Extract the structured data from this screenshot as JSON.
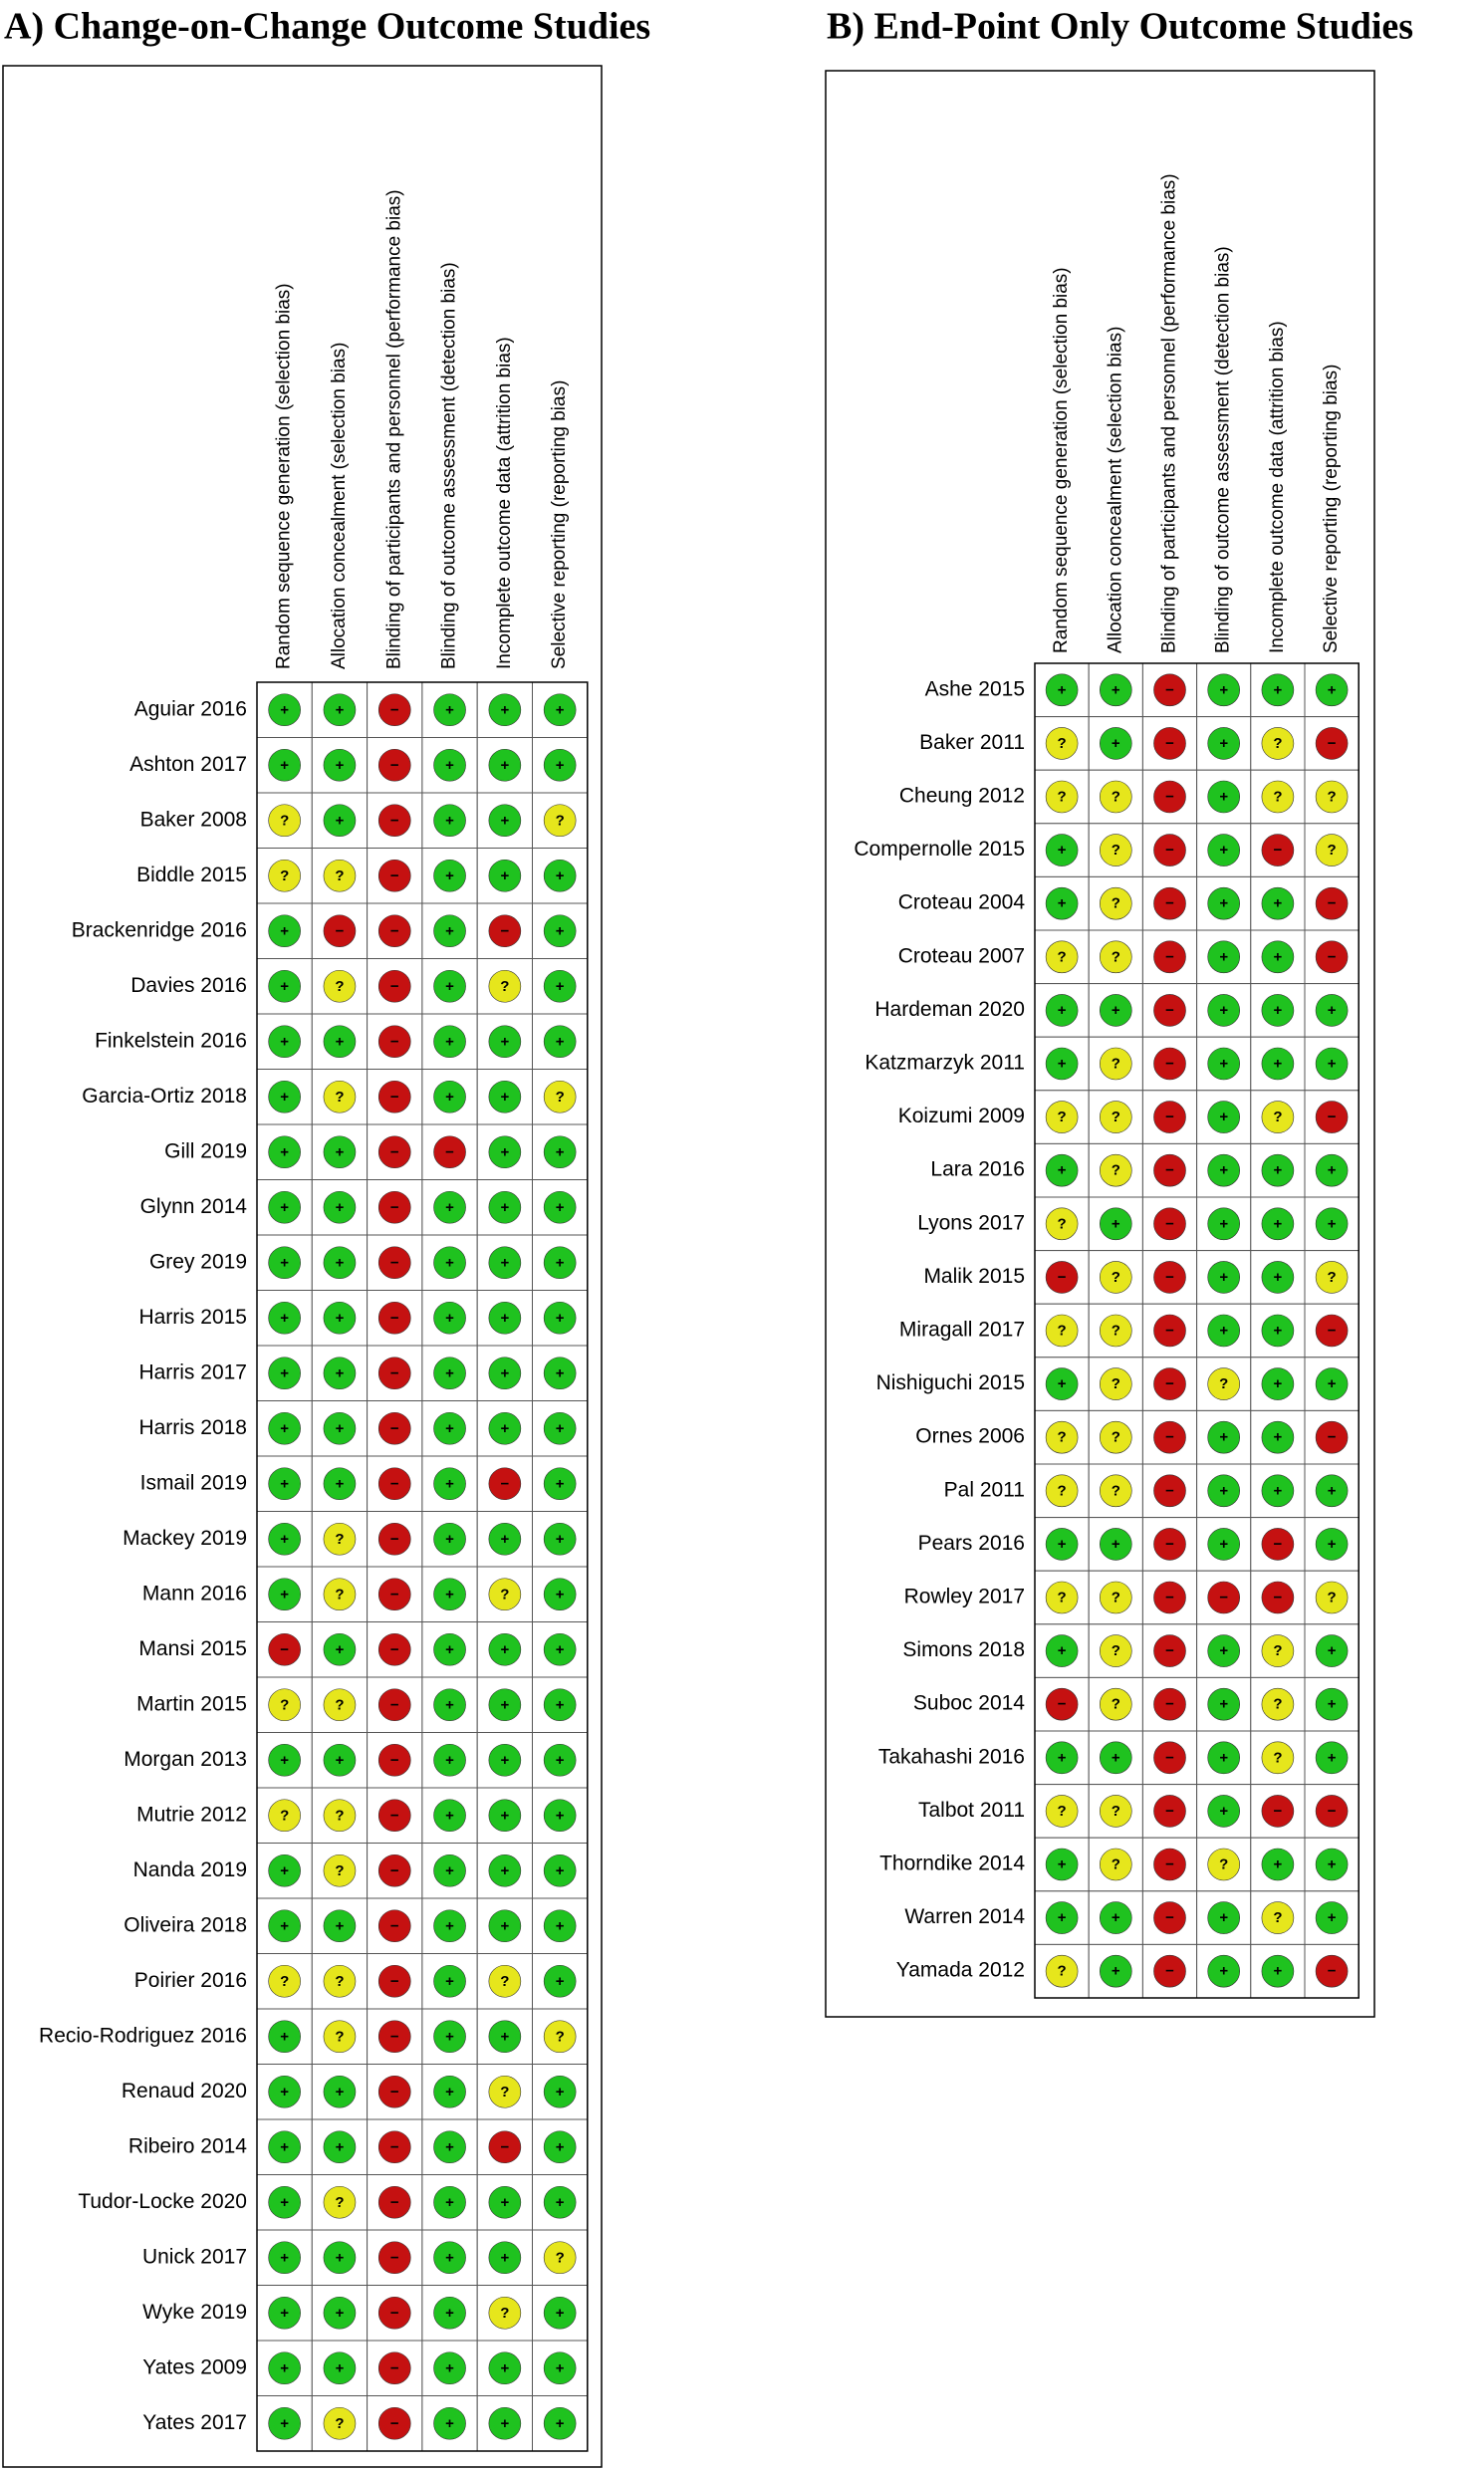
{
  "symbol_colors": [
    {
      "symbol": "+",
      "color": "#1fc21f"
    },
    {
      "symbol": "?",
      "color": "#e6e61c"
    },
    {
      "symbol": "−",
      "color": "#c51111"
    }
  ],
  "panels": [
    {
      "title": "A) Change-on-Change Outcome Studies",
      "columns": [
        "Random sequence generation (selection bias)",
        "Allocation concealment (selection bias)",
        "Blinding of participants and personnel (performance bias)",
        "Blinding of outcome assessment (detection bias)",
        "Incomplete outcome data (attrition bias)",
        "Selective reporting (reporting bias)"
      ],
      "rows": [
        {
          "study": "Aguiar 2016",
          "judgments": [
            "+",
            "+",
            "−",
            "+",
            "+",
            "+"
          ]
        },
        {
          "study": "Ashton 2017",
          "judgments": [
            "+",
            "+",
            "−",
            "+",
            "+",
            "+"
          ]
        },
        {
          "study": "Baker 2008",
          "judgments": [
            "?",
            "+",
            "−",
            "+",
            "+",
            "?"
          ]
        },
        {
          "study": "Biddle 2015",
          "judgments": [
            "?",
            "?",
            "−",
            "+",
            "+",
            "+"
          ]
        },
        {
          "study": "Brackenridge 2016",
          "judgments": [
            "+",
            "−",
            "−",
            "+",
            "−",
            "+"
          ]
        },
        {
          "study": "Davies 2016",
          "judgments": [
            "+",
            "?",
            "−",
            "+",
            "?",
            "+"
          ]
        },
        {
          "study": "Finkelstein 2016",
          "judgments": [
            "+",
            "+",
            "−",
            "+",
            "+",
            "+"
          ]
        },
        {
          "study": "Garcia-Ortiz 2018",
          "judgments": [
            "+",
            "?",
            "−",
            "+",
            "+",
            "?"
          ]
        },
        {
          "study": "Gill 2019",
          "judgments": [
            "+",
            "+",
            "−",
            "−",
            "+",
            "+"
          ]
        },
        {
          "study": "Glynn 2014",
          "judgments": [
            "+",
            "+",
            "−",
            "+",
            "+",
            "+"
          ]
        },
        {
          "study": "Grey 2019",
          "judgments": [
            "+",
            "+",
            "−",
            "+",
            "+",
            "+"
          ]
        },
        {
          "study": "Harris 2015",
          "judgments": [
            "+",
            "+",
            "−",
            "+",
            "+",
            "+"
          ]
        },
        {
          "study": "Harris 2017",
          "judgments": [
            "+",
            "+",
            "−",
            "+",
            "+",
            "+"
          ]
        },
        {
          "study": "Harris 2018",
          "judgments": [
            "+",
            "+",
            "−",
            "+",
            "+",
            "+"
          ]
        },
        {
          "study": "Ismail 2019",
          "judgments": [
            "+",
            "+",
            "−",
            "+",
            "−",
            "+"
          ]
        },
        {
          "study": "Mackey 2019",
          "judgments": [
            "+",
            "?",
            "−",
            "+",
            "+",
            "+"
          ]
        },
        {
          "study": "Mann 2016",
          "judgments": [
            "+",
            "?",
            "−",
            "+",
            "?",
            "+"
          ]
        },
        {
          "study": "Mansi 2015",
          "judgments": [
            "−",
            "+",
            "−",
            "+",
            "+",
            "+"
          ]
        },
        {
          "study": "Martin 2015",
          "judgments": [
            "?",
            "?",
            "−",
            "+",
            "+",
            "+"
          ]
        },
        {
          "study": "Morgan 2013",
          "judgments": [
            "+",
            "+",
            "−",
            "+",
            "+",
            "+"
          ]
        },
        {
          "study": "Mutrie 2012",
          "judgments": [
            "?",
            "?",
            "−",
            "+",
            "+",
            "+"
          ]
        },
        {
          "study": "Nanda 2019",
          "judgments": [
            "+",
            "?",
            "−",
            "+",
            "+",
            "+"
          ]
        },
        {
          "study": "Oliveira 2018",
          "judgments": [
            "+",
            "+",
            "−",
            "+",
            "+",
            "+"
          ]
        },
        {
          "study": "Poirier 2016",
          "judgments": [
            "?",
            "?",
            "−",
            "+",
            "?",
            "+"
          ]
        },
        {
          "study": "Recio-Rodriguez 2016",
          "judgments": [
            "+",
            "?",
            "−",
            "+",
            "+",
            "?"
          ]
        },
        {
          "study": "Renaud 2020",
          "judgments": [
            "+",
            "+",
            "−",
            "+",
            "?",
            "+"
          ]
        },
        {
          "study": "Ribeiro 2014",
          "judgments": [
            "+",
            "+",
            "−",
            "+",
            "−",
            "+"
          ]
        },
        {
          "study": "Tudor-Locke 2020",
          "judgments": [
            "+",
            "?",
            "−",
            "+",
            "+",
            "+"
          ]
        },
        {
          "study": "Unick 2017",
          "judgments": [
            "+",
            "+",
            "−",
            "+",
            "+",
            "?"
          ]
        },
        {
          "study": "Wyke 2019",
          "judgments": [
            "+",
            "+",
            "−",
            "+",
            "?",
            "+"
          ]
        },
        {
          "study": "Yates 2009",
          "judgments": [
            "+",
            "+",
            "−",
            "+",
            "+",
            "+"
          ]
        },
        {
          "study": "Yates 2017",
          "judgments": [
            "+",
            "?",
            "−",
            "+",
            "+",
            "+"
          ]
        }
      ]
    },
    {
      "title": "B) End-Point Only Outcome Studies",
      "columns": [
        "Random sequence generation (selection bias)",
        "Allocation concealment (selection bias)",
        "Blinding of participants and personnel (performance bias)",
        "Blinding of outcome assessment (detection bias)",
        "Incomplete outcome data (attrition bias)",
        "Selective reporting (reporting bias)"
      ],
      "rows": [
        {
          "study": "Ashe 2015",
          "judgments": [
            "+",
            "+",
            "−",
            "+",
            "+",
            "+"
          ]
        },
        {
          "study": "Baker 2011",
          "judgments": [
            "?",
            "+",
            "−",
            "+",
            "?",
            "−"
          ]
        },
        {
          "study": "Cheung 2012",
          "judgments": [
            "?",
            "?",
            "−",
            "+",
            "?",
            "?"
          ]
        },
        {
          "study": "Compernolle 2015",
          "judgments": [
            "+",
            "?",
            "−",
            "+",
            "−",
            "?"
          ]
        },
        {
          "study": "Croteau 2004",
          "judgments": [
            "+",
            "?",
            "−",
            "+",
            "+",
            "−"
          ]
        },
        {
          "study": "Croteau 2007",
          "judgments": [
            "?",
            "?",
            "−",
            "+",
            "+",
            "−"
          ]
        },
        {
          "study": "Hardeman 2020",
          "judgments": [
            "+",
            "+",
            "−",
            "+",
            "+",
            "+"
          ]
        },
        {
          "study": "Katzmarzyk 2011",
          "judgments": [
            "+",
            "?",
            "−",
            "+",
            "+",
            "+"
          ]
        },
        {
          "study": "Koizumi 2009",
          "judgments": [
            "?",
            "?",
            "−",
            "+",
            "?",
            "−"
          ]
        },
        {
          "study": "Lara 2016",
          "judgments": [
            "+",
            "?",
            "−",
            "+",
            "+",
            "+"
          ]
        },
        {
          "study": "Lyons 2017",
          "judgments": [
            "?",
            "+",
            "−",
            "+",
            "+",
            "+"
          ]
        },
        {
          "study": "Malik 2015",
          "judgments": [
            "−",
            "?",
            "−",
            "+",
            "+",
            "?"
          ]
        },
        {
          "study": "Miragall 2017",
          "judgments": [
            "?",
            "?",
            "−",
            "+",
            "+",
            "−"
          ]
        },
        {
          "study": "Nishiguchi 2015",
          "judgments": [
            "+",
            "?",
            "−",
            "?",
            "+",
            "+"
          ]
        },
        {
          "study": "Ornes 2006",
          "judgments": [
            "?",
            "?",
            "−",
            "+",
            "+",
            "−"
          ]
        },
        {
          "study": "Pal 2011",
          "judgments": [
            "?",
            "?",
            "−",
            "+",
            "+",
            "+"
          ]
        },
        {
          "study": "Pears 2016",
          "judgments": [
            "+",
            "+",
            "−",
            "+",
            "−",
            "+"
          ]
        },
        {
          "study": "Rowley 2017",
          "judgments": [
            "?",
            "?",
            "−",
            "−",
            "−",
            "?"
          ]
        },
        {
          "study": "Simons 2018",
          "judgments": [
            "+",
            "?",
            "−",
            "+",
            "?",
            "+"
          ]
        },
        {
          "study": "Suboc 2014",
          "judgments": [
            "−",
            "?",
            "−",
            "+",
            "?",
            "+"
          ]
        },
        {
          "study": "Takahashi 2016",
          "judgments": [
            "+",
            "+",
            "−",
            "+",
            "?",
            "+"
          ]
        },
        {
          "study": "Talbot 2011",
          "judgments": [
            "?",
            "?",
            "−",
            "+",
            "−",
            "−"
          ]
        },
        {
          "study": "Thorndike 2014",
          "judgments": [
            "+",
            "?",
            "−",
            "?",
            "+",
            "+"
          ]
        },
        {
          "study": "Warren 2014",
          "judgments": [
            "+",
            "+",
            "−",
            "+",
            "?",
            "+"
          ]
        },
        {
          "study": "Yamada 2012",
          "judgments": [
            "?",
            "+",
            "−",
            "+",
            "+",
            "−"
          ]
        }
      ]
    }
  ]
}
